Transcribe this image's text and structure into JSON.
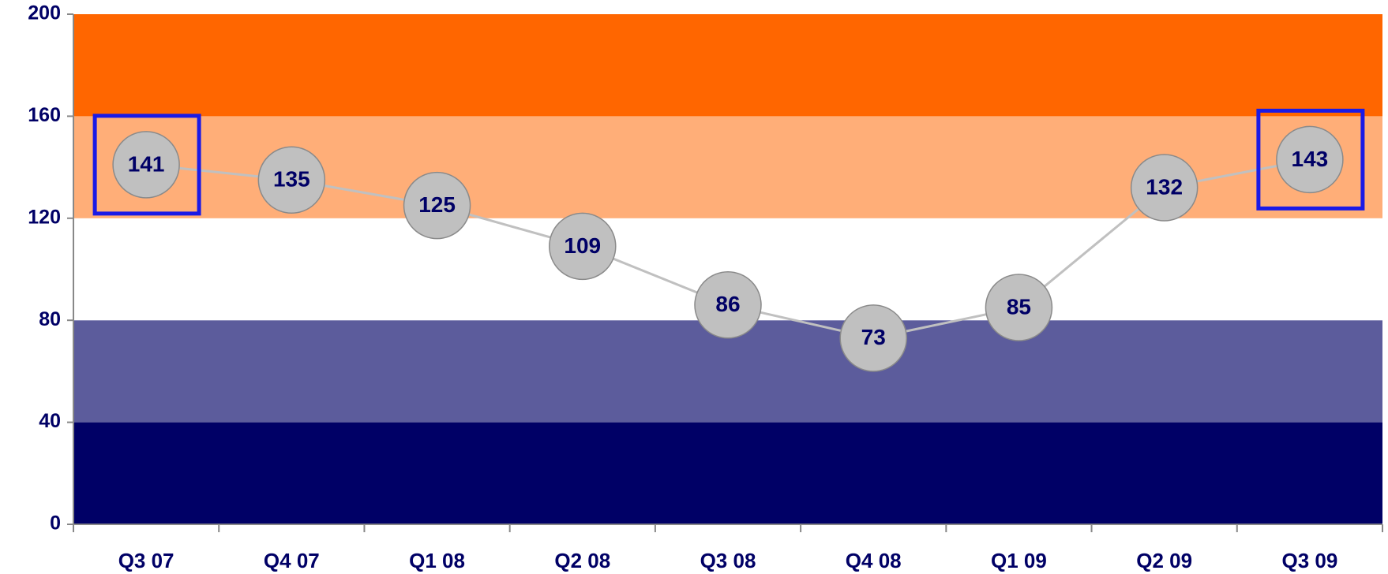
{
  "chart_data": {
    "type": "line",
    "categories": [
      "Q3 07",
      "Q4 07",
      "Q1 08",
      "Q2 08",
      "Q3 08",
      "Q4 08",
      "Q1 09",
      "Q2 09",
      "Q3 09"
    ],
    "series": [
      {
        "color": "#c0c0c0",
        "values": [
          141,
          135,
          125,
          109,
          86,
          73,
          85,
          132,
          143
        ]
      }
    ],
    "ylim": [
      0,
      200
    ],
    "yticks": [
      0,
      40,
      80,
      120,
      160,
      200
    ],
    "bands": [
      {
        "from": 0,
        "to": 40,
        "color": "#000066"
      },
      {
        "from": 40,
        "to": 80,
        "color": "#5c5c9c"
      },
      {
        "from": 80,
        "to": 120,
        "color": "#ffffff"
      },
      {
        "from": 120,
        "to": 160,
        "color": "#ffae78"
      },
      {
        "from": 160,
        "to": 200,
        "color": "#ff6600"
      }
    ],
    "highlighted": [
      0,
      8
    ],
    "highlight_color": "#1a1ae6"
  }
}
